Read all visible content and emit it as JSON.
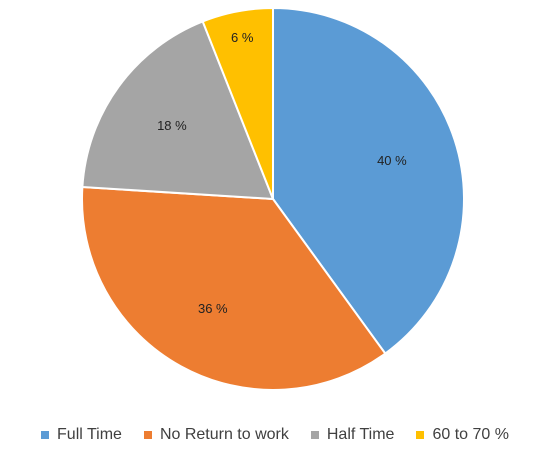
{
  "chart_data": {
    "type": "pie",
    "categories": [
      "Full Time",
      "No Return to work",
      "Half Time",
      "60 to 70 %"
    ],
    "values": [
      40,
      36,
      18,
      6
    ],
    "value_labels": [
      "40 %",
      "36 %",
      "18 %",
      "6 %"
    ],
    "colors": [
      "#5b9bd5",
      "#ed7d31",
      "#a5a5a5",
      "#ffc000"
    ],
    "start_angle": "top (12 o'clock)",
    "direction": "clockwise",
    "legend_placement": "bottom"
  }
}
